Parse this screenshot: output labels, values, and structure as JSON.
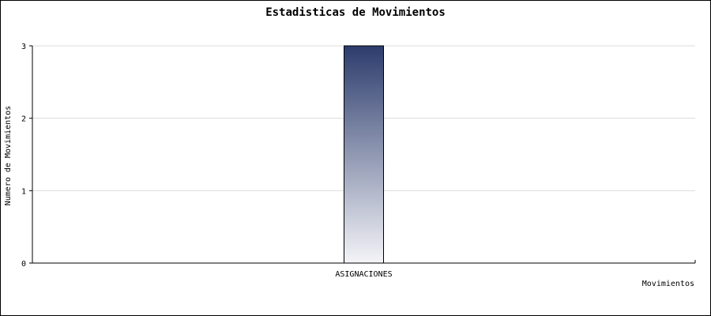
{
  "chart_data": {
    "type": "bar",
    "title": "Estadisticas de Movimientos",
    "xlabel": "Movimientos",
    "ylabel": "Numero de Movimientos",
    "categories": [
      "ASIGNACIONES"
    ],
    "values": [
      3
    ],
    "ylim": [
      0,
      3
    ],
    "yticks": [
      "0",
      "1",
      "2",
      "3"
    ],
    "grid": true,
    "colors": {
      "bar_top": "#2c3c6c",
      "bar_bottom": "#f4f4f8",
      "grid": "#dcdcdc",
      "axis": "#000000"
    }
  }
}
